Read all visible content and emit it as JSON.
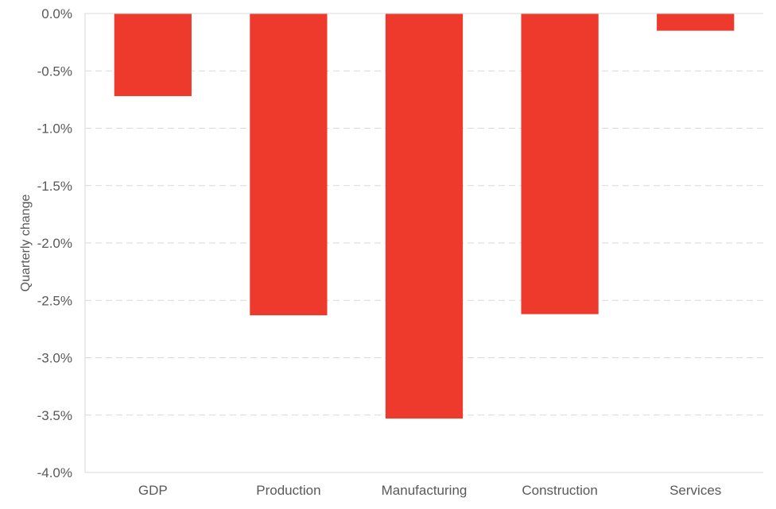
{
  "chart_data": {
    "type": "bar",
    "title": "",
    "xlabel": "",
    "ylabel": "Quarterly change",
    "categories": [
      "GDP",
      "Production",
      "Manufacturing",
      "Construction",
      "Services"
    ],
    "values": [
      -0.72,
      -2.63,
      -3.53,
      -2.62,
      -0.15
    ],
    "ylim": [
      -4.0,
      0.0
    ],
    "yticks": [
      0.0,
      -0.5,
      -1.0,
      -1.5,
      -2.0,
      -2.5,
      -3.0,
      -3.5,
      -4.0
    ],
    "ytick_labels": [
      "0.0%",
      "-0.5%",
      "-1.0%",
      "-1.5%",
      "-2.0%",
      "-2.5%",
      "-3.0%",
      "-3.5%",
      "-4.0%"
    ],
    "grid": true,
    "legend": "none",
    "bar_color": "#EE3A2C",
    "grid_color": "#D9D9D9"
  }
}
